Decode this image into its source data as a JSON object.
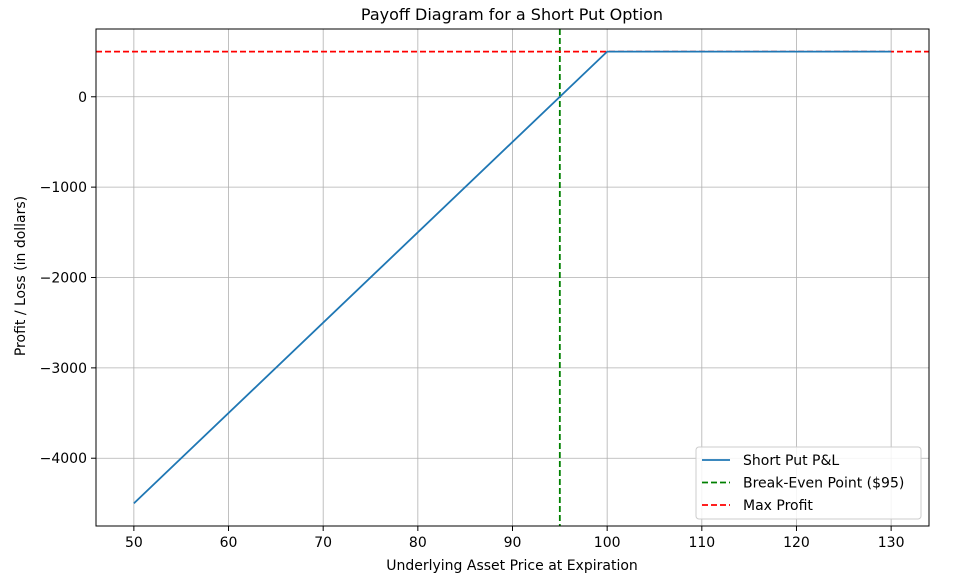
{
  "chart_data": {
    "type": "line",
    "title": "Payoff Diagram for a Short Put Option",
    "xlabel": "Underlying Asset Price at Expiration",
    "ylabel": "Profit / Loss (in dollars)",
    "xlim": [
      46,
      134
    ],
    "ylim": [
      -4750,
      750
    ],
    "xticks": [
      50,
      60,
      70,
      80,
      90,
      100,
      110,
      120,
      130
    ],
    "yticks": [
      0,
      -1000,
      -2000,
      -3000,
      -4000
    ],
    "grid": true,
    "legend_position": "lower-right",
    "series": [
      {
        "name": "Short Put P&L",
        "color": "#1f77b4",
        "style": "solid",
        "x": [
          50,
          100,
          130
        ],
        "y": [
          -4500,
          500,
          500
        ]
      }
    ],
    "reference_lines": [
      {
        "name": "Break-Even Point ($95)",
        "orientation": "vertical",
        "value": 95,
        "color": "#008000",
        "style": "dashed"
      },
      {
        "name": "Max Profit",
        "orientation": "horizontal",
        "value": 500,
        "color": "#ff0000",
        "style": "dashed"
      }
    ]
  }
}
